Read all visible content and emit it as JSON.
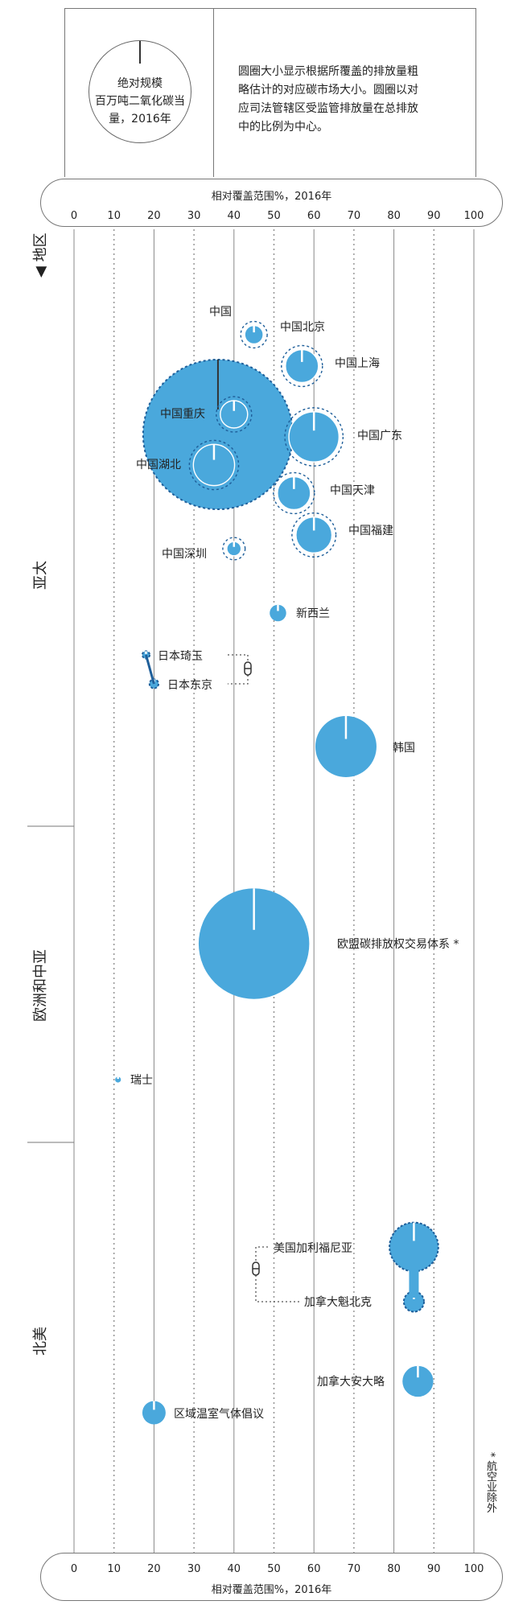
{
  "legend": {
    "circle_text": "绝对规模\n百万吨二氧化碳当\n量，2016年",
    "description": "圆圈大小显示根据所覆盖的排放量粗\n略估计的对应碳市场大小。圆圈以对\n应司法管辖区受监管排放量在总排放\n中的比例为中心。"
  },
  "footnote": "* 航空业除外",
  "colors": {
    "bubble": "#4aa8dc",
    "bubble_dark": "#1f5f9a",
    "line": "#777777"
  },
  "chart_data": {
    "type": "bubble",
    "x_axis": {
      "label": "相对覆盖范围%，2016年",
      "ticks": [
        0,
        10,
        20,
        30,
        40,
        50,
        60,
        70,
        80,
        90,
        100
      ],
      "range": [
        0,
        100
      ]
    },
    "region_title": "◀ 地区",
    "regions": [
      {
        "name": "亚太"
      },
      {
        "name": "欧洲和中亚"
      },
      {
        "name": "北美"
      }
    ],
    "bubbles": [
      {
        "name": "中国",
        "x": 36,
        "region": "亚太",
        "style": "outline_big",
        "size": 3300
      },
      {
        "name": "中国北京",
        "x": 45,
        "region": "亚太",
        "style": "inner",
        "size": 50
      },
      {
        "name": "中国上海",
        "x": 57,
        "region": "亚太",
        "style": "inner",
        "size": 160
      },
      {
        "name": "中国重庆",
        "x": 40,
        "region": "亚太",
        "style": "inner",
        "size": 110
      },
      {
        "name": "中国广东",
        "x": 60,
        "region": "亚太",
        "style": "inner",
        "size": 370
      },
      {
        "name": "中国湖北",
        "x": 35,
        "region": "亚太",
        "style": "inner",
        "size": 250
      },
      {
        "name": "中国天津",
        "x": 55,
        "region": "亚太",
        "style": "inner",
        "size": 160
      },
      {
        "name": "中国福建",
        "x": 60,
        "region": "亚太",
        "style": "inner",
        "size": 190
      },
      {
        "name": "中国深圳",
        "x": 40,
        "region": "亚太",
        "style": "inner",
        "size": 30
      },
      {
        "name": "新西兰",
        "x": 51,
        "region": "亚太",
        "style": "solid",
        "size": 40
      },
      {
        "name": "日本琦玉",
        "x": 18,
        "region": "亚太",
        "style": "linked",
        "size": 8
      },
      {
        "name": "日本东京",
        "x": 20,
        "region": "亚太",
        "style": "linked",
        "size": 12
      },
      {
        "name": "韩国",
        "x": 68,
        "region": "亚太",
        "style": "solid",
        "size": 550
      },
      {
        "name": "欧盟碳排放权交易体系 *",
        "x": 45,
        "region": "欧洲和中亚",
        "style": "solid",
        "size": 1800
      },
      {
        "name": "瑞士",
        "x": 11,
        "region": "欧洲和中亚",
        "style": "solid",
        "size": 5
      },
      {
        "name": "美国加利福尼亚",
        "x": 85,
        "region": "北美",
        "style": "linked",
        "size": 350
      },
      {
        "name": "加拿大魁北克",
        "x": 85,
        "region": "北美",
        "style": "linked",
        "size": 60
      },
      {
        "name": "加拿大安大略",
        "x": 86,
        "region": "北美",
        "style": "solid",
        "size": 140
      },
      {
        "name": "区域温室气体倡议",
        "x": 20,
        "region": "北美",
        "style": "solid",
        "size": 80
      }
    ]
  }
}
